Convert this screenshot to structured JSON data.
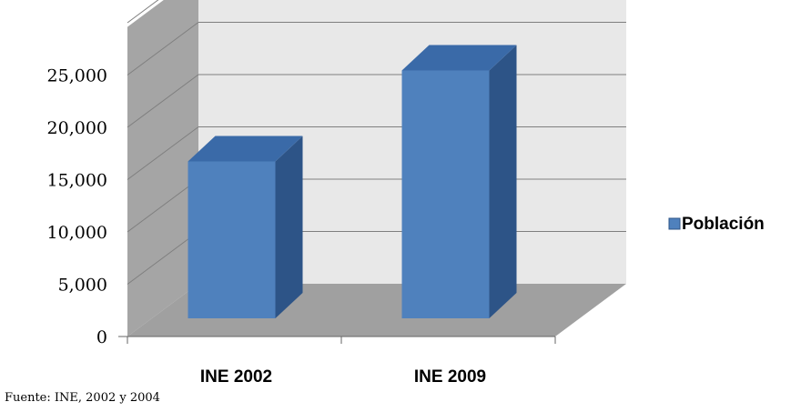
{
  "chart_data": {
    "type": "bar",
    "style": "3d-column",
    "categories": [
      "INE 2002",
      "INE 2009"
    ],
    "series": [
      {
        "name": "Población",
        "values": [
          15000,
          23700
        ],
        "color": "#4F81BD"
      }
    ],
    "ylim": [
      0,
      25000
    ],
    "yticks": [
      0,
      5000,
      10000,
      15000,
      20000,
      25000
    ],
    "ytick_labels": [
      "0",
      "5,000",
      "10,000",
      "15,000",
      "20,000",
      "25,000"
    ],
    "grid": true,
    "legend_position": "right",
    "title": "",
    "xlabel": "",
    "ylabel": ""
  },
  "source_note": "Fuente: INE, 2002 y 2004",
  "colors": {
    "bar_front": "#4F81BD",
    "bar_side": "#2D5487",
    "bar_top": "#3A6AA8",
    "back_wall": "#E8E8E8",
    "side_wall": "#A5A5A5",
    "floor": "#A0A0A0",
    "gridline": "#7F7F7F"
  }
}
